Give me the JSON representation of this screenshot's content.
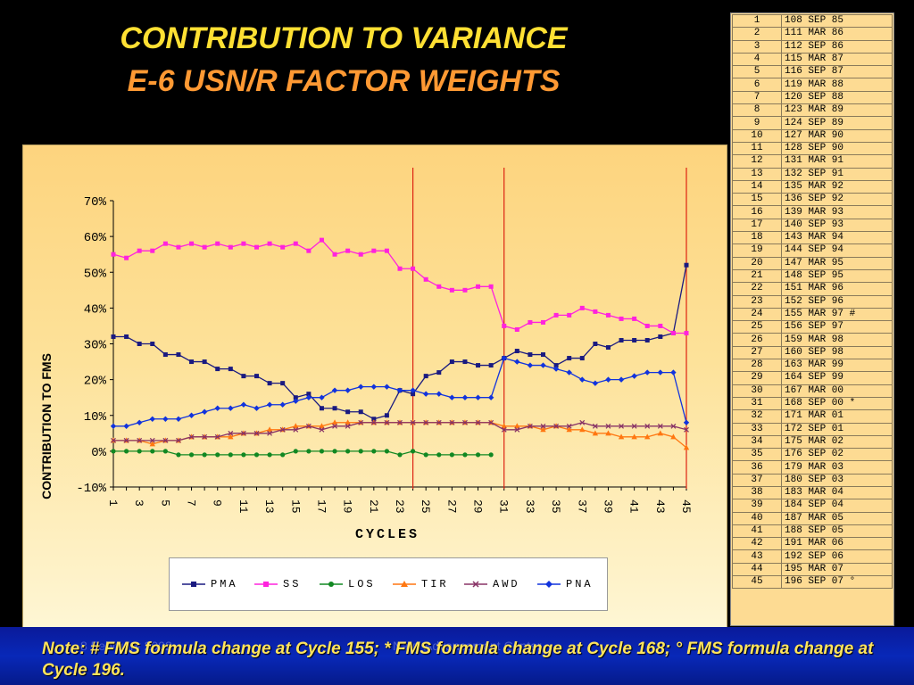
{
  "slide": {
    "title_line1": "CONTRIBUTION TO VARIANCE",
    "title_line2": "E-6 USN/R FACTOR WEIGHTS",
    "note": "Note: # FMS formula change at Cycle 155; * FMS formula change at Cycle 168; ° FMS formula change at Cycle 196.",
    "footer_date": "8 February 2002",
    "footer_org": "Navy Advancement Center"
  },
  "colors": {
    "PMA": "#1a1a80",
    "SS": "#ff22dd",
    "LOS": "#118822",
    "TIR": "#ff7711",
    "AWD": "#883366",
    "PNA": "#1133dd",
    "vline": "#dd2211"
  },
  "chart_data": {
    "type": "line",
    "xlabel": "CYCLES",
    "ylabel": "CONTRIBUTION TO FMS",
    "ylim": [
      -10,
      70
    ],
    "y_ticks": [
      "70%",
      "60%",
      "50%",
      "40%",
      "30%",
      "20%",
      "10%",
      "0%",
      "-10%"
    ],
    "x": [
      1,
      2,
      3,
      4,
      5,
      6,
      7,
      8,
      9,
      10,
      11,
      12,
      13,
      14,
      15,
      16,
      17,
      18,
      19,
      20,
      21,
      22,
      23,
      24,
      25,
      26,
      27,
      28,
      29,
      30,
      31,
      32,
      33,
      34,
      35,
      36,
      37,
      38,
      39,
      40,
      41,
      42,
      43,
      44,
      45
    ],
    "x_tick_labels": [
      "1",
      "3",
      "5",
      "7",
      "9",
      "11",
      "13",
      "15",
      "17",
      "19",
      "21",
      "23",
      "25",
      "27",
      "29",
      "31",
      "33",
      "35",
      "37",
      "39",
      "41",
      "43",
      "45"
    ],
    "vertical_lines_at": [
      24,
      31,
      45
    ],
    "series": [
      {
        "name": "PMA",
        "values": [
          32,
          32,
          30,
          30,
          27,
          27,
          25,
          25,
          23,
          23,
          21,
          21,
          19,
          19,
          15,
          16,
          12,
          12,
          11,
          11,
          9,
          10,
          17,
          16,
          21,
          22,
          25,
          25,
          24,
          24,
          26,
          28,
          27,
          27,
          24,
          26,
          26,
          30,
          29,
          31,
          31,
          31,
          32,
          33,
          52
        ]
      },
      {
        "name": "SS",
        "values": [
          55,
          54,
          56,
          56,
          58,
          57,
          58,
          57,
          58,
          57,
          58,
          57,
          58,
          57,
          58,
          56,
          59,
          55,
          56,
          55,
          56,
          56,
          51,
          51,
          48,
          46,
          45,
          45,
          46,
          46,
          35,
          34,
          36,
          36,
          38,
          38,
          40,
          39,
          38,
          37,
          37,
          35,
          35,
          33,
          33
        ]
      },
      {
        "name": "LOS",
        "values": [
          0,
          0,
          0,
          0,
          0,
          -1,
          -1,
          -1,
          -1,
          -1,
          -1,
          -1,
          -1,
          -1,
          0,
          0,
          0,
          0,
          0,
          0,
          0,
          0,
          -1,
          0,
          -1,
          -1,
          -1,
          -1,
          -1,
          -1,
          null,
          null,
          null,
          null,
          null,
          null,
          null,
          null,
          null,
          null,
          null,
          null,
          null,
          null,
          null
        ]
      },
      {
        "name": "TIR",
        "values": [
          3,
          3,
          3,
          2,
          3,
          3,
          4,
          4,
          4,
          4,
          5,
          5,
          6,
          6,
          7,
          7,
          7,
          8,
          8,
          8,
          8,
          8,
          8,
          8,
          8,
          8,
          8,
          8,
          8,
          8,
          7,
          7,
          7,
          6,
          7,
          6,
          6,
          5,
          5,
          4,
          4,
          4,
          5,
          4,
          1
        ]
      },
      {
        "name": "AWD",
        "values": [
          3,
          3,
          3,
          3,
          3,
          3,
          4,
          4,
          4,
          5,
          5,
          5,
          5,
          6,
          6,
          7,
          6,
          7,
          7,
          8,
          8,
          8,
          8,
          8,
          8,
          8,
          8,
          8,
          8,
          8,
          6,
          6,
          7,
          7,
          7,
          7,
          8,
          7,
          7,
          7,
          7,
          7,
          7,
          7,
          6
        ]
      },
      {
        "name": "PNA",
        "values": [
          7,
          7,
          8,
          9,
          9,
          9,
          10,
          11,
          12,
          12,
          13,
          12,
          13,
          13,
          14,
          15,
          15,
          17,
          17,
          18,
          18,
          18,
          17,
          17,
          16,
          16,
          15,
          15,
          15,
          15,
          26,
          25,
          24,
          24,
          23,
          22,
          20,
          19,
          20,
          20,
          21,
          22,
          22,
          22,
          8
        ]
      }
    ]
  },
  "cycle_table": [
    [
      "1",
      "108 SEP 85"
    ],
    [
      "2",
      "111 MAR 86"
    ],
    [
      "3",
      "112 SEP 86"
    ],
    [
      "4",
      "115 MAR 87"
    ],
    [
      "5",
      "116 SEP 87"
    ],
    [
      "6",
      "119 MAR 88"
    ],
    [
      "7",
      "120 SEP 88"
    ],
    [
      "8",
      "123 MAR 89"
    ],
    [
      "9",
      "124 SEP 89"
    ],
    [
      "10",
      "127 MAR 90"
    ],
    [
      "11",
      "128 SEP 90"
    ],
    [
      "12",
      "131 MAR 91"
    ],
    [
      "13",
      "132 SEP 91"
    ],
    [
      "14",
      "135 MAR 92"
    ],
    [
      "15",
      "136 SEP 92"
    ],
    [
      "16",
      "139 MAR 93"
    ],
    [
      "17",
      "140 SEP 93"
    ],
    [
      "18",
      "143 MAR 94"
    ],
    [
      "19",
      "144 SEP 94"
    ],
    [
      "20",
      "147 MAR 95"
    ],
    [
      "21",
      "148 SEP 95"
    ],
    [
      "22",
      "151 MAR 96"
    ],
    [
      "23",
      "152 SEP 96"
    ],
    [
      "24",
      "155 MAR 97 #"
    ],
    [
      "25",
      "156 SEP 97"
    ],
    [
      "26",
      "159 MAR 98"
    ],
    [
      "27",
      "160 SEP 98"
    ],
    [
      "28",
      "163 MAR 99"
    ],
    [
      "29",
      "164 SEP 99"
    ],
    [
      "30",
      "167 MAR 00"
    ],
    [
      "31",
      "168 SEP 00 *"
    ],
    [
      "32",
      "171 MAR 01"
    ],
    [
      "33",
      "172 SEP 01"
    ],
    [
      "34",
      "175 MAR 02"
    ],
    [
      "35",
      "176 SEP 02"
    ],
    [
      "36",
      "179 MAR 03"
    ],
    [
      "37",
      "180 SEP 03"
    ],
    [
      "38",
      "183 MAR 04"
    ],
    [
      "39",
      "184 SEP 04"
    ],
    [
      "40",
      "187 MAR 05"
    ],
    [
      "41",
      "188 SEP 05"
    ],
    [
      "42",
      "191 MAR 06"
    ],
    [
      "43",
      "192 SEP 06"
    ],
    [
      "44",
      "195 MAR 07"
    ],
    [
      "45",
      "196 SEP 07 °"
    ]
  ]
}
